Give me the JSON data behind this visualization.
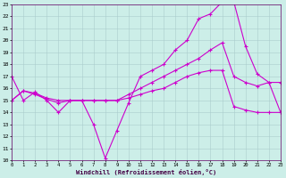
{
  "xlabel": "Windchill (Refroidissement éolien,°C)",
  "xlim": [
    0,
    23
  ],
  "ylim": [
    10,
    23
  ],
  "xticks": [
    0,
    1,
    2,
    3,
    4,
    5,
    6,
    7,
    8,
    9,
    10,
    11,
    12,
    13,
    14,
    15,
    16,
    17,
    18,
    19,
    20,
    21,
    22,
    23
  ],
  "yticks": [
    10,
    11,
    12,
    13,
    14,
    15,
    16,
    17,
    18,
    19,
    20,
    21,
    22,
    23
  ],
  "background_color": "#cceee8",
  "grid_color": "#aacccc",
  "line_color": "#cc00cc",
  "line1_x": [
    0,
    1,
    2,
    3,
    4,
    5,
    6,
    7,
    8,
    9,
    10,
    11,
    12,
    13,
    14,
    15,
    16,
    17,
    18,
    19,
    20,
    21,
    22,
    23
  ],
  "line1_y": [
    17,
    15,
    15.7,
    15,
    14,
    15,
    15,
    13,
    10.2,
    12.5,
    14.8,
    17,
    17.5,
    18,
    19.2,
    20,
    21.8,
    22.2,
    23.2,
    23.2,
    19.5,
    17.2,
    16.5,
    16.5
  ],
  "line2_x": [
    0,
    1,
    2,
    3,
    4,
    5,
    6,
    7,
    8,
    9,
    10,
    11,
    12,
    13,
    14,
    15,
    16,
    17,
    18,
    19,
    20,
    21,
    22,
    23
  ],
  "line2_y": [
    15,
    15.8,
    15.6,
    15.2,
    15,
    15,
    15,
    15,
    15,
    15,
    15.5,
    16,
    16.5,
    17,
    17.5,
    18,
    18.5,
    19.2,
    19.8,
    17,
    16.5,
    16.2,
    16.5,
    14
  ],
  "line3_x": [
    0,
    1,
    2,
    3,
    4,
    5,
    6,
    7,
    8,
    9,
    10,
    11,
    12,
    13,
    14,
    15,
    16,
    17,
    18,
    19,
    20,
    21,
    22,
    23
  ],
  "line3_y": [
    15,
    15.8,
    15.5,
    15.1,
    14.8,
    15,
    15,
    15,
    15,
    15,
    15.2,
    15.5,
    15.8,
    16,
    16.5,
    17,
    17.3,
    17.5,
    17.5,
    14.5,
    14.2,
    14,
    14,
    14
  ]
}
